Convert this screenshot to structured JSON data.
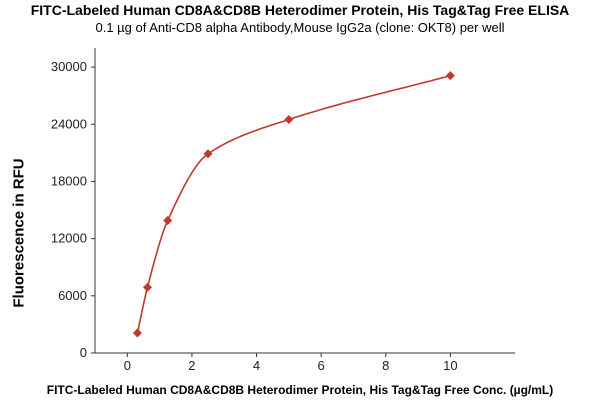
{
  "chart_data": {
    "type": "scatter",
    "title": "FITC-Labeled Human CD8A&CD8B Heterodimer Protein, His Tag&Tag Free ELISA",
    "subtitle": "0.1 µg of Anti-CD8 alpha Antibody,Mouse IgG2a (clone: OKT8) per well",
    "xlabel": "FITC-Labeled Human CD8A&CD8B Heterodimer Protein, His Tag&Tag Free Conc. (µg/mL)",
    "ylabel": "Fluorescence in RFU",
    "xlim": [
      -1,
      12
    ],
    "ylim": [
      0,
      32000
    ],
    "xticks": [
      0,
      2,
      4,
      6,
      8,
      10
    ],
    "yticks": [
      0,
      6000,
      12000,
      18000,
      24000,
      30000
    ],
    "grid": false,
    "series": [
      {
        "x": [
          0.313,
          0.625,
          1.25,
          2.5,
          5,
          10
        ],
        "y": [
          2100,
          6900,
          13900,
          20900,
          24500,
          29100
        ],
        "marker": "diamond",
        "color": "#c0392b",
        "fit_curve": true
      }
    ]
  }
}
